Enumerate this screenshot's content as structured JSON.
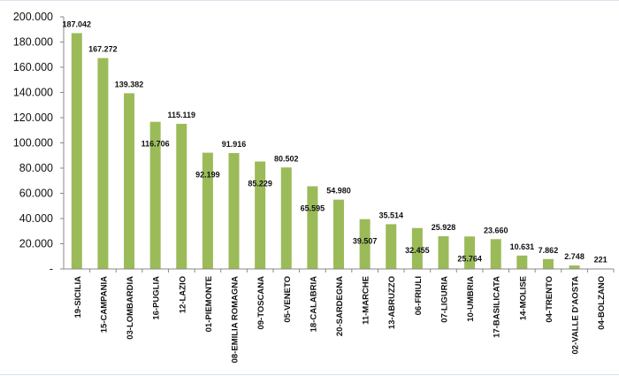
{
  "chart_data": {
    "type": "bar",
    "title": "",
    "xlabel": "",
    "ylabel": "",
    "ylim": [
      0,
      200000
    ],
    "y_ticks": [
      0,
      20000,
      40000,
      60000,
      80000,
      100000,
      120000,
      140000,
      160000,
      180000,
      200000
    ],
    "y_tick_labels": [
      "-",
      "20.000",
      "40.000",
      "60.000",
      "80.000",
      "100.000",
      "120.000",
      "140.000",
      "160.000",
      "180.000",
      "200.000"
    ],
    "grid": false,
    "legend": "none",
    "bar_color": "#9bbb59",
    "categories": [
      "19-SICILIA",
      "15-CAMPANIA",
      "03-LOMBARDIA",
      "16-PUGLIA",
      "12-LAZIO",
      "01-PIEMONTE",
      "08-EMILIA ROMAGNA",
      "09-TOSCANA",
      "05-VENETO",
      "18-CALABRIA",
      "20-SARDEGNA",
      "11-MARCHE",
      "13-ABRUZZO",
      "06-FRIULI",
      "07-LIGURIA",
      "10-UMBRIA",
      "17-BASILICATA",
      "14-MOLISE",
      "04-TRENTO",
      "02-VALLE D'AOSTA",
      "04-BOLZANO"
    ],
    "values": [
      187042,
      167272,
      139382,
      116706,
      115119,
      92199,
      91916,
      85229,
      80502,
      65595,
      54980,
      39507,
      35514,
      32455,
      25928,
      25764,
      23660,
      10631,
      7862,
      2748,
      221
    ],
    "value_labels": [
      "187.042",
      "167.272",
      "139.382",
      "116.706",
      "115.119",
      "92.199",
      "91.916",
      "85.229",
      "80.502",
      "65.595",
      "54.980",
      "39.507",
      "35.514",
      "32.455",
      "25.928",
      "25.764",
      "23.660",
      "10.631",
      "7.862",
      "2.748",
      "221"
    ]
  }
}
